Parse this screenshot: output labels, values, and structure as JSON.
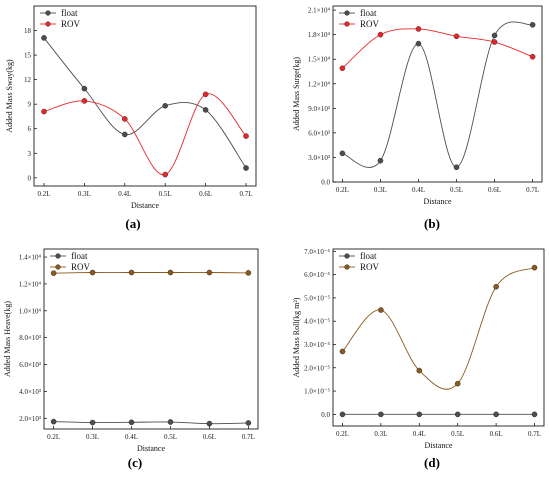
{
  "chart_data": [
    {
      "type": "line",
      "panel": "(a)",
      "categories": [
        "0.2L",
        "0.3L",
        "0.4L",
        "0.5L",
        "0.6L",
        "0.7L"
      ],
      "xlabel": "Distance",
      "ylabel": "Added Mass Sway(kg)",
      "ylim": [
        -1,
        21
      ],
      "yticks": [
        0,
        3,
        6,
        9,
        12,
        15,
        18
      ],
      "yticklabels": [
        "0",
        "3",
        "6",
        "9",
        "12",
        "15",
        "18"
      ],
      "legend": "top-left",
      "series": [
        {
          "name": "float",
          "color": "#4d4d4d",
          "values": [
            17.1,
            10.9,
            5.3,
            8.8,
            8.3,
            1.2
          ]
        },
        {
          "name": "ROV",
          "color": "#e8262a",
          "values": [
            8.1,
            9.4,
            7.2,
            0.4,
            10.2,
            5.1
          ]
        }
      ]
    },
    {
      "type": "line",
      "panel": "(b)",
      "categories": [
        "0.2L",
        "0.3L",
        "0.4L",
        "0.5L",
        "0.6L",
        "0.7L"
      ],
      "xlabel": "Distance",
      "ylabel": "Added Mass Surge(kg)",
      "ylim": [
        0,
        2.15
      ],
      "yticks": [
        0,
        0.3,
        0.6,
        0.9,
        1.2,
        1.5,
        1.8,
        2.1
      ],
      "yticklabels": [
        "0.0",
        "3.0×10³",
        "6.0×10³",
        "9.0×10³",
        "1.2×10⁴",
        "1.5×10⁴",
        "1.8×10⁴",
        "2.1×10⁴"
      ],
      "legend": "top-left",
      "series": [
        {
          "name": "float",
          "color": "#4d4d4d",
          "values": [
            0.35,
            0.26,
            1.69,
            0.18,
            1.79,
            1.92
          ]
        },
        {
          "name": "ROV",
          "color": "#e8262a",
          "values": [
            1.39,
            1.8,
            1.87,
            1.78,
            1.71,
            1.53
          ]
        }
      ]
    },
    {
      "type": "line",
      "panel": "(c)",
      "categories": [
        "0.2L",
        "0.3L",
        "0.4L",
        "0.5L",
        "0.6L",
        "0.7L"
      ],
      "xlabel": "Distance",
      "ylabel": "Added Mass Heave(kg)",
      "ylim": [
        1.2,
        14.6
      ],
      "yticks": [
        2,
        4,
        6,
        8,
        10,
        12,
        14
      ],
      "yticklabels": [
        "2.0×10³",
        "4.0×10³",
        "6.0×10³",
        "8.0×10³",
        "1.0×10⁴",
        "1.2×10⁴",
        "1.4×10⁴"
      ],
      "legend": "top-left",
      "series": [
        {
          "name": "float",
          "color": "#4d4d4d",
          "values": [
            1.75,
            1.68,
            1.7,
            1.72,
            1.6,
            1.65
          ]
        },
        {
          "name": "ROV",
          "color": "#8b5a1e",
          "values": [
            12.8,
            12.85,
            12.85,
            12.85,
            12.85,
            12.82
          ]
        }
      ]
    },
    {
      "type": "line",
      "panel": "(d)",
      "categories": [
        "0.2L",
        "0.3L",
        "0.4L",
        "0.5L",
        "0.6L",
        "0.7L"
      ],
      "xlabel": "Distance",
      "ylabel": "Added Mass Roll(kg m²)",
      "ylim": [
        -0.5,
        7.1
      ],
      "yticks": [
        0,
        1,
        2,
        3,
        4,
        5,
        6,
        7
      ],
      "yticklabels": [
        "0.0",
        "1.0×10⁻⁵",
        "2.0×10⁻⁵",
        "3.0×10⁻⁵",
        "4.0×10⁻⁵",
        "5.0×10⁻⁵",
        "6.0×10⁻⁵",
        "7.0×10⁻⁵"
      ],
      "legend": "top-left",
      "series": [
        {
          "name": "float",
          "color": "#4d4d4d",
          "values": [
            0.0,
            0.0,
            0.0,
            0.0,
            0.0,
            0.0
          ]
        },
        {
          "name": "ROV",
          "color": "#8b5a1e",
          "values": [
            2.7,
            4.48,
            1.88,
            1.32,
            5.48,
            6.3
          ]
        }
      ]
    }
  ]
}
